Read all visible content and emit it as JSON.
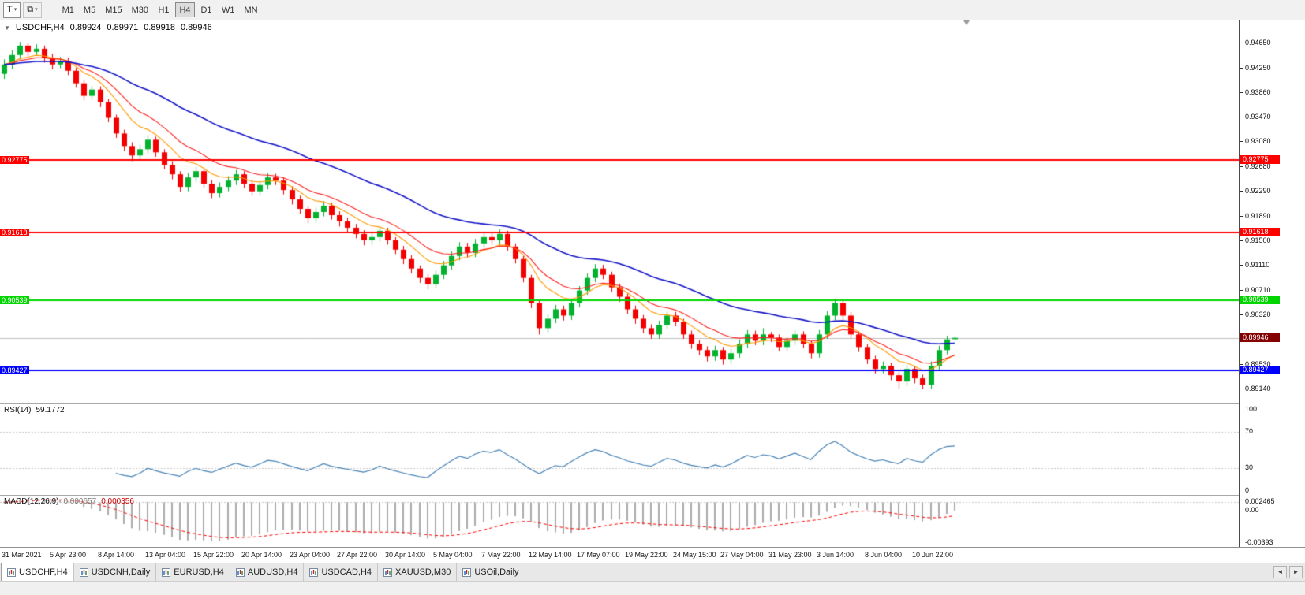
{
  "toolbar": {
    "tool_buttons": [
      {
        "name": "text-tool-button",
        "icon": "text-tool-icon",
        "glyph": "T",
        "chevron": "▾"
      },
      {
        "name": "objects-tool-button",
        "icon": "layers-icon",
        "glyph": "⧉",
        "chevron": "▾"
      }
    ],
    "timeframes": [
      "M1",
      "M5",
      "M15",
      "M30",
      "H1",
      "H4",
      "D1",
      "W1",
      "MN"
    ],
    "active_timeframe": "H4"
  },
  "chart_header": {
    "dropdown_glyph": "▼",
    "symbol": "USDCHF,H4",
    "open": "0.89924",
    "high": "0.89971",
    "low": "0.89918",
    "close": "0.89946"
  },
  "tabs": [
    {
      "label": "USDCHF,H4",
      "active": true
    },
    {
      "label": "USDCNH,Daily"
    },
    {
      "label": "EURUSD,H4"
    },
    {
      "label": "AUDUSD,H4"
    },
    {
      "label": "USDCAD,H4"
    },
    {
      "label": "XAUUSD,M30"
    },
    {
      "label": "USOil,Daily"
    }
  ],
  "tab_scroll": {
    "left_glyph": "◄",
    "right_glyph": "►"
  },
  "chart_data": [
    {
      "name": "price",
      "type": "candlestick",
      "title": "USDCHF,H4",
      "ylim": [
        0.889,
        0.95
      ],
      "up_color": "#00B22D",
      "down_color": "#F40000",
      "y_tick_labels": [
        "0.94650",
        "0.94250",
        "0.93860",
        "0.93470",
        "0.93080",
        "0.92680",
        "0.92290",
        "0.91890",
        "0.91500",
        "0.91110",
        "0.90710",
        "0.90320",
        "0.89930",
        "0.89530",
        "0.89140"
      ],
      "x_tick_labels": [
        "31 Mar 2021",
        "5 Apr 23:00",
        "8 Apr 14:00",
        "13 Apr 04:00",
        "15 Apr 22:00",
        "20 Apr 14:00",
        "23 Apr 04:00",
        "27 Apr 22:00",
        "30 Apr 14:00",
        "5 May 04:00",
        "7 May 22:00",
        "12 May 14:00",
        "17 May 07:00",
        "19 May 22:00",
        "24 May 15:00",
        "27 May 04:00",
        "31 May 23:00",
        "3 Jun 14:00",
        "8 Jun 04:00",
        "10 Jun 22:00"
      ],
      "moving_averages": [
        {
          "period": 8,
          "method": "ema",
          "color": "#FF9900"
        },
        {
          "period": 13,
          "method": "ema",
          "color": "#FF1E1E"
        },
        {
          "period": 34,
          "method": "ema",
          "color": "#1414C8"
        }
      ],
      "hlines": [
        {
          "value": 0.92775,
          "label": "0.92775",
          "color": "#FF0000"
        },
        {
          "value": 0.91618,
          "label": "0.91618",
          "color": "#FF0000"
        },
        {
          "value": 0.90539,
          "label": "0.90539",
          "color": "#00D500"
        },
        {
          "value": 0.89427,
          "label": "0.89427",
          "color": "#0000FF"
        }
      ],
      "bid_line": {
        "value": 0.89946,
        "label": "0.89946",
        "line_color": "#C0C0C0",
        "tag_color": "#850000"
      },
      "candles": [
        [
          0.9415,
          0.9438,
          0.9407,
          0.943
        ],
        [
          0.943,
          0.9453,
          0.9423,
          0.9445
        ],
        [
          0.9445,
          0.9466,
          0.9438,
          0.946
        ],
        [
          0.946,
          0.9464,
          0.9443,
          0.945
        ],
        [
          0.945,
          0.9462,
          0.9444,
          0.9455
        ],
        [
          0.9455,
          0.946,
          0.9433,
          0.944
        ],
        [
          0.944,
          0.9447,
          0.9422,
          0.943
        ],
        [
          0.943,
          0.9442,
          0.9424,
          0.9435
        ],
        [
          0.9435,
          0.9441,
          0.9413,
          0.942
        ],
        [
          0.942,
          0.9425,
          0.9393,
          0.94
        ],
        [
          0.94,
          0.9405,
          0.9373,
          0.938
        ],
        [
          0.938,
          0.9396,
          0.9374,
          0.939
        ],
        [
          0.939,
          0.9395,
          0.9362,
          0.937
        ],
        [
          0.937,
          0.9375,
          0.9338,
          0.9345
        ],
        [
          0.9345,
          0.935,
          0.9313,
          0.932
        ],
        [
          0.932,
          0.9326,
          0.9292,
          0.93
        ],
        [
          0.93,
          0.9306,
          0.9276,
          0.9285
        ],
        [
          0.9285,
          0.9302,
          0.9278,
          0.9295
        ],
        [
          0.9295,
          0.9317,
          0.9288,
          0.931
        ],
        [
          0.931,
          0.9315,
          0.9283,
          0.929
        ],
        [
          0.929,
          0.9295,
          0.9263,
          0.927
        ],
        [
          0.927,
          0.9276,
          0.9247,
          0.9255
        ],
        [
          0.9255,
          0.926,
          0.9227,
          0.9235
        ],
        [
          0.9235,
          0.9257,
          0.9228,
          0.925
        ],
        [
          0.925,
          0.9267,
          0.9243,
          0.926
        ],
        [
          0.926,
          0.9265,
          0.9233,
          0.924
        ],
        [
          0.924,
          0.9246,
          0.9217,
          0.9225
        ],
        [
          0.9225,
          0.9242,
          0.9218,
          0.9235
        ],
        [
          0.9235,
          0.9252,
          0.9228,
          0.9245
        ],
        [
          0.9245,
          0.9262,
          0.9238,
          0.9255
        ],
        [
          0.9255,
          0.926,
          0.9233,
          0.924
        ],
        [
          0.924,
          0.9245,
          0.9221,
          0.9228
        ],
        [
          0.9228,
          0.9245,
          0.9221,
          0.9238
        ],
        [
          0.9238,
          0.9257,
          0.9231,
          0.925
        ],
        [
          0.925,
          0.9256,
          0.9238,
          0.9245
        ],
        [
          0.9245,
          0.925,
          0.9223,
          0.923
        ],
        [
          0.923,
          0.9236,
          0.9207,
          0.9215
        ],
        [
          0.9215,
          0.9221,
          0.9192,
          0.92
        ],
        [
          0.92,
          0.9205,
          0.9177,
          0.9185
        ],
        [
          0.9185,
          0.9202,
          0.9178,
          0.9195
        ],
        [
          0.9195,
          0.9212,
          0.9188,
          0.9205
        ],
        [
          0.9205,
          0.921,
          0.9183,
          0.919
        ],
        [
          0.919,
          0.9196,
          0.9172,
          0.918
        ],
        [
          0.918,
          0.9186,
          0.9163,
          0.917
        ],
        [
          0.917,
          0.9176,
          0.9153,
          0.916
        ],
        [
          0.916,
          0.9166,
          0.9142,
          0.915
        ],
        [
          0.915,
          0.9162,
          0.9143,
          0.9155
        ],
        [
          0.9155,
          0.9172,
          0.9148,
          0.9165
        ],
        [
          0.9165,
          0.917,
          0.9143,
          0.915
        ],
        [
          0.915,
          0.9155,
          0.9128,
          0.9135
        ],
        [
          0.9135,
          0.9141,
          0.9112,
          0.912
        ],
        [
          0.912,
          0.9126,
          0.9097,
          0.9105
        ],
        [
          0.9105,
          0.911,
          0.9082,
          0.909
        ],
        [
          0.909,
          0.9096,
          0.9072,
          0.908
        ],
        [
          0.908,
          0.9102,
          0.9073,
          0.9095
        ],
        [
          0.9095,
          0.9117,
          0.9088,
          0.911
        ],
        [
          0.911,
          0.9132,
          0.9103,
          0.9125
        ],
        [
          0.9125,
          0.9147,
          0.9118,
          0.914
        ],
        [
          0.914,
          0.9146,
          0.9123,
          0.913
        ],
        [
          0.913,
          0.9152,
          0.9123,
          0.9145
        ],
        [
          0.9145,
          0.9162,
          0.9138,
          0.9155
        ],
        [
          0.9155,
          0.9161,
          0.9143,
          0.915
        ],
        [
          0.915,
          0.9167,
          0.9143,
          0.916
        ],
        [
          0.916,
          0.9165,
          0.9133,
          0.914
        ],
        [
          0.914,
          0.9145,
          0.9113,
          0.912
        ],
        [
          0.912,
          0.9125,
          0.9083,
          0.909
        ],
        [
          0.909,
          0.9095,
          0.9042,
          0.905
        ],
        [
          0.905,
          0.9055,
          0.9,
          0.901
        ],
        [
          0.901,
          0.9032,
          0.9003,
          0.9025
        ],
        [
          0.9025,
          0.9047,
          0.9018,
          0.904
        ],
        [
          0.904,
          0.9046,
          0.9022,
          0.903
        ],
        [
          0.903,
          0.9057,
          0.9023,
          0.905
        ],
        [
          0.905,
          0.9077,
          0.9043,
          0.907
        ],
        [
          0.907,
          0.9097,
          0.9063,
          0.909
        ],
        [
          0.909,
          0.9112,
          0.9083,
          0.9105
        ],
        [
          0.9105,
          0.9111,
          0.9088,
          0.9095
        ],
        [
          0.9095,
          0.91,
          0.9068,
          0.9075
        ],
        [
          0.9075,
          0.9081,
          0.9052,
          0.906
        ],
        [
          0.906,
          0.9065,
          0.9033,
          0.904
        ],
        [
          0.904,
          0.9046,
          0.9017,
          0.9025
        ],
        [
          0.9025,
          0.9031,
          0.9002,
          0.901
        ],
        [
          0.901,
          0.9016,
          0.8993,
          0.9
        ],
        [
          0.9,
          0.9022,
          0.8993,
          0.9015
        ],
        [
          0.9015,
          0.9037,
          0.9008,
          0.903
        ],
        [
          0.903,
          0.9036,
          0.9013,
          0.902
        ],
        [
          0.902,
          0.9025,
          0.8993,
          0.9
        ],
        [
          0.9,
          0.9006,
          0.8977,
          0.8985
        ],
        [
          0.8985,
          0.8991,
          0.8967,
          0.8975
        ],
        [
          0.8975,
          0.8981,
          0.8957,
          0.8965
        ],
        [
          0.8965,
          0.8982,
          0.8958,
          0.8975
        ],
        [
          0.8975,
          0.898,
          0.8952,
          0.896
        ],
        [
          0.896,
          0.8977,
          0.8953,
          0.897
        ],
        [
          0.897,
          0.8992,
          0.8963,
          0.8985
        ],
        [
          0.8985,
          0.9007,
          0.8978,
          0.9
        ],
        [
          0.9,
          0.9006,
          0.8983,
          0.899
        ],
        [
          0.899,
          0.901,
          0.8983,
          0.9
        ],
        [
          0.9,
          0.9004,
          0.8988,
          0.8995
        ],
        [
          0.8995,
          0.9,
          0.8973,
          0.898
        ],
        [
          0.898,
          0.8997,
          0.8973,
          0.899
        ],
        [
          0.899,
          0.9007,
          0.8983,
          0.9
        ],
        [
          0.9,
          0.9005,
          0.8978,
          0.8985
        ],
        [
          0.8985,
          0.899,
          0.8962,
          0.897
        ],
        [
          0.897,
          0.9007,
          0.8963,
          0.9
        ],
        [
          0.9,
          0.9037,
          0.8993,
          0.903
        ],
        [
          0.903,
          0.9057,
          0.9023,
          0.905
        ],
        [
          0.905,
          0.9056,
          0.9022,
          0.903
        ],
        [
          0.903,
          0.9036,
          0.8993,
          0.9
        ],
        [
          0.9,
          0.9005,
          0.8972,
          0.898
        ],
        [
          0.898,
          0.8985,
          0.8953,
          0.896
        ],
        [
          0.896,
          0.8966,
          0.8938,
          0.8945
        ],
        [
          0.8945,
          0.8957,
          0.8938,
          0.895
        ],
        [
          0.895,
          0.8955,
          0.8927,
          0.8935
        ],
        [
          0.8935,
          0.894,
          0.8914,
          0.8925
        ],
        [
          0.8925,
          0.8952,
          0.8918,
          0.8945
        ],
        [
          0.8945,
          0.895,
          0.8922,
          0.893
        ],
        [
          0.893,
          0.8936,
          0.8913,
          0.892
        ],
        [
          0.892,
          0.8957,
          0.8913,
          0.895
        ],
        [
          0.895,
          0.8982,
          0.8943,
          0.8975
        ],
        [
          0.8975,
          0.8998,
          0.8968,
          0.8992
        ],
        [
          0.89924,
          0.89971,
          0.89918,
          0.89946
        ]
      ]
    },
    {
      "name": "rsi",
      "type": "line",
      "label": "RSI(14)",
      "current_value": "59.1772",
      "period": 14,
      "color": "#4682B4",
      "ylim": [
        0,
        100
      ],
      "levels": [
        70,
        30
      ],
      "y_tick_labels": [
        "100",
        "70",
        "30",
        "0"
      ]
    },
    {
      "name": "macd",
      "type": "bar",
      "label": "MACD(12,26,9)",
      "current_values": [
        "0.000657",
        "0.000356"
      ],
      "fast": 12,
      "slow": 26,
      "signal": 9,
      "histogram_color": "#ABABAB",
      "signal_color": "#FF0000",
      "y_tick_labels": [
        "0.002465",
        "0.00",
        "-0.00393"
      ]
    }
  ]
}
